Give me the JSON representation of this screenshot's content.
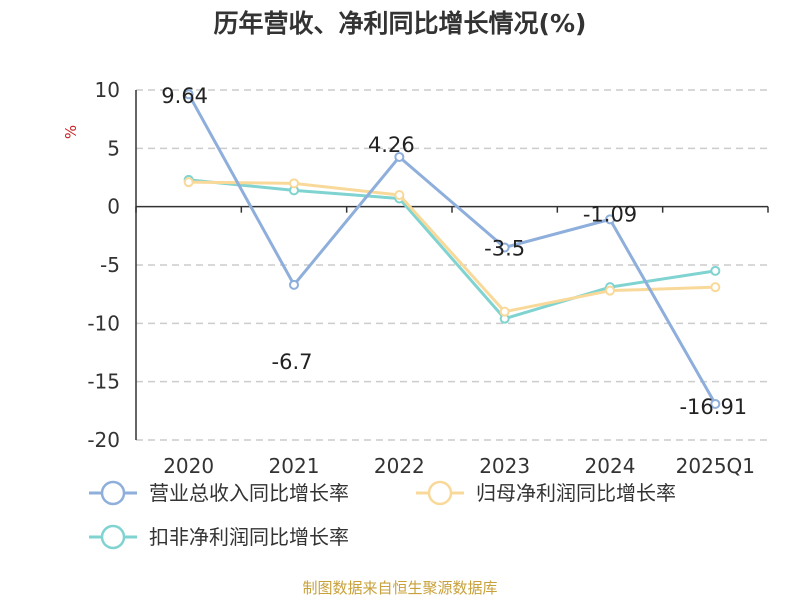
{
  "chart_data": {
    "type": "line",
    "title": "历年营收、净利同比增长情况(%)",
    "ylabel": "%",
    "categories": [
      "2020",
      "2021",
      "2022",
      "2023",
      "2024",
      "2025Q1"
    ],
    "ylim": [
      -20,
      10
    ],
    "yticks": [
      10,
      5,
      0,
      -5,
      -10,
      -15,
      -20
    ],
    "grid": "horizontal-dashed",
    "legend_position": "bottom-left",
    "series": [
      {
        "name": "营业总收入同比增长率",
        "color": "#8eaedb",
        "values": [
          9.64,
          -6.7,
          4.26,
          -3.5,
          -1.09,
          -16.91
        ],
        "labels": [
          "9.64",
          "-6.7",
          "4.26",
          "-3.5",
          "-1.09",
          "-16.91"
        ]
      },
      {
        "name": "归母净利润同比增长率",
        "color": "#f9d99a",
        "values": [
          2.1,
          2.0,
          1.0,
          -9.0,
          -7.2,
          -6.9
        ]
      },
      {
        "name": "扣非净利润同比增长率",
        "color": "#7fd3d0",
        "values": [
          2.3,
          1.4,
          0.7,
          -9.6,
          -6.9,
          -5.5
        ]
      }
    ]
  },
  "source_note": "制图数据来自恒生聚源数据库"
}
